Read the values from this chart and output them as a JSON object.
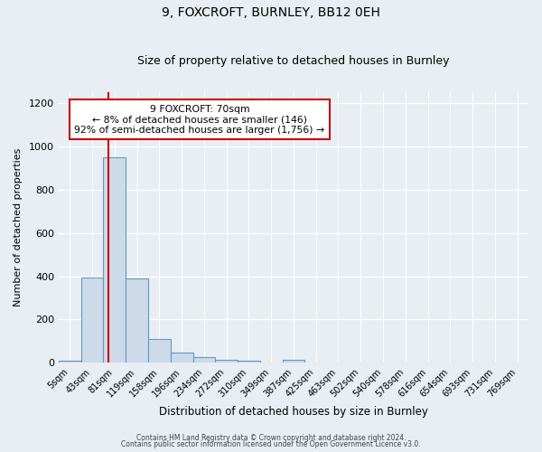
{
  "title": "9, FOXCROFT, BURNLEY, BB12 0EH",
  "subtitle": "Size of property relative to detached houses in Burnley",
  "xlabel": "Distribution of detached houses by size in Burnley",
  "ylabel": "Number of detached properties",
  "categories": [
    "5sqm",
    "43sqm",
    "81sqm",
    "119sqm",
    "158sqm",
    "196sqm",
    "234sqm",
    "272sqm",
    "310sqm",
    "349sqm",
    "387sqm",
    "425sqm",
    "463sqm",
    "502sqm",
    "540sqm",
    "578sqm",
    "616sqm",
    "654sqm",
    "693sqm",
    "731sqm",
    "769sqm"
  ],
  "values": [
    10,
    395,
    950,
    390,
    110,
    48,
    28,
    13,
    10,
    0,
    12,
    0,
    0,
    0,
    0,
    0,
    0,
    0,
    0,
    0,
    0
  ],
  "bar_color": "#cddaea",
  "bar_edge_color": "#6699bb",
  "annotation_text": "9 FOXCROFT: 70sqm\n← 8% of detached houses are smaller (146)\n92% of semi-detached houses are larger (1,756) →",
  "ylim": [
    0,
    1250
  ],
  "yticks": [
    0,
    200,
    400,
    600,
    800,
    1000,
    1200
  ],
  "footer_line1": "Contains HM Land Registry data © Crown copyright and database right 2024.",
  "footer_line2": "Contains public sector information licensed under the Open Government Licence v3.0.",
  "background_color": "#e8eef4",
  "plot_bg_color": "#e8eef4",
  "grid_color": "#ffffff",
  "annotation_box_edge": "#cc0000",
  "red_line_color": "#cc0000",
  "red_line_x": 1.71
}
